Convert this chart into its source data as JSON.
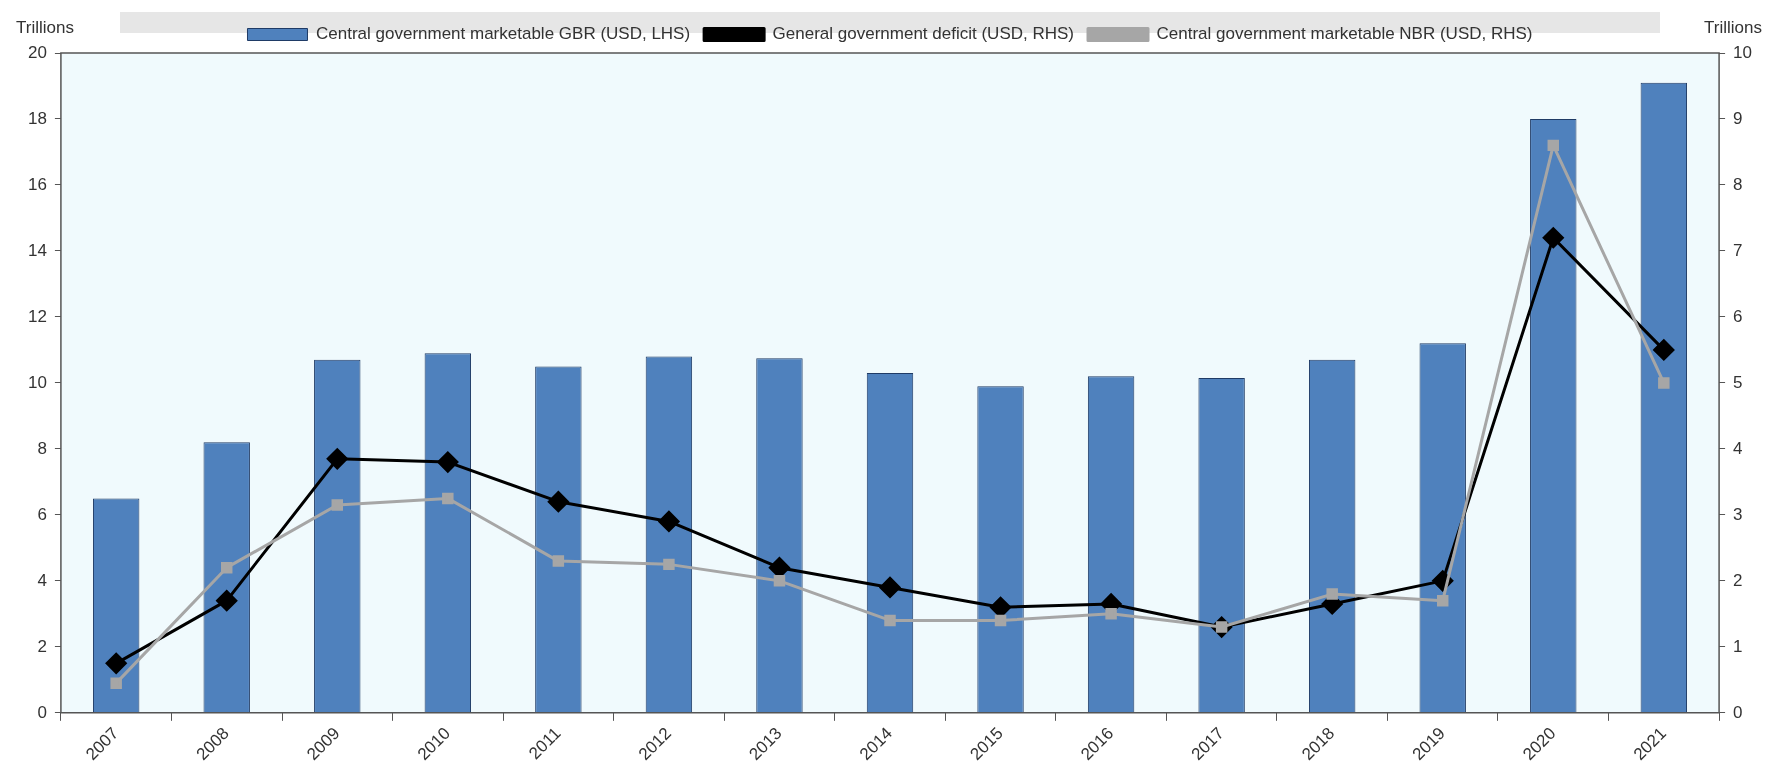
{
  "chart_data": {
    "type": "bar",
    "ylabel": "Trillions",
    "y2label": "Trillions",
    "categories": [
      "2007",
      "2008",
      "2009",
      "2010",
      "2011",
      "2012",
      "2013",
      "2014",
      "2015",
      "2016",
      "2017",
      "2018",
      "2019",
      "2020",
      "2021"
    ],
    "series": [
      {
        "name": "Central government marketable GBR (USD, LHS)",
        "color": "#4f81bd",
        "values": [
          6.5,
          8.2,
          10.7,
          10.9,
          10.5,
          10.8,
          10.75,
          10.3,
          9.9,
          10.2,
          10.15,
          10.7,
          11.2,
          18.0,
          19.1
        ]
      },
      {
        "name": "General government deficit (USD, RHS)",
        "type": "line",
        "axis": "y2",
        "marker": "diamond",
        "color": "#000000",
        "values": [
          0.75,
          1.7,
          3.85,
          3.8,
          3.2,
          2.9,
          2.2,
          1.9,
          1.6,
          1.65,
          1.3,
          1.65,
          2.0,
          7.2,
          5.5
        ]
      },
      {
        "name": "Central government marketable NBR (USD, RHS)",
        "type": "line",
        "axis": "y2",
        "marker": "square",
        "color": "#a6a6a6",
        "values": [
          0.45,
          2.2,
          3.15,
          3.25,
          2.3,
          2.25,
          2.0,
          1.4,
          1.4,
          1.5,
          1.3,
          1.8,
          1.7,
          8.6,
          5.0
        ]
      }
    ],
    "ylim": [
      0,
      20
    ],
    "yticks": [
      0,
      2,
      4,
      6,
      8,
      10,
      12,
      14,
      16,
      18,
      20
    ],
    "y2lim": [
      0,
      10
    ],
    "y2ticks": [
      0,
      1,
      2,
      3,
      4,
      5,
      6,
      7,
      8,
      9,
      10
    ],
    "grid": false,
    "legend": "top"
  }
}
